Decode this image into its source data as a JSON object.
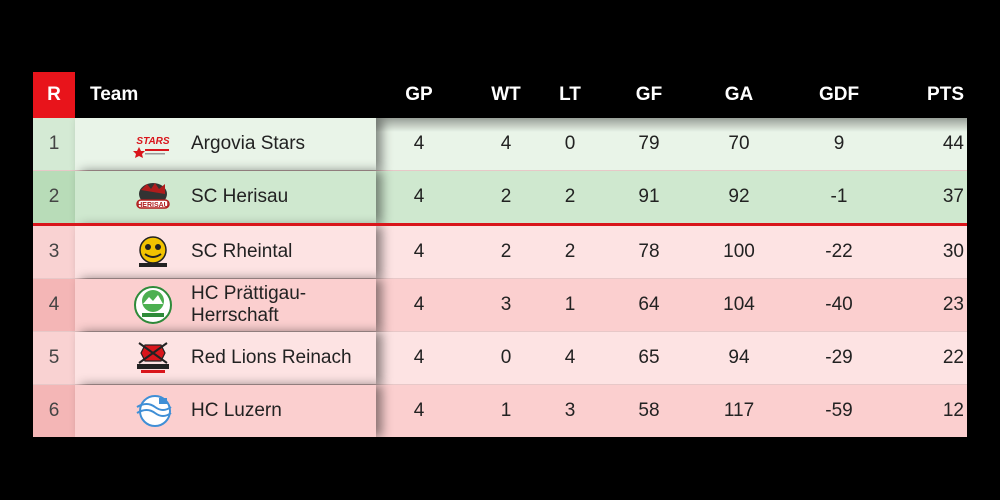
{
  "header": {
    "rank": "R",
    "team": "Team",
    "gp": "GP",
    "wt": "WT",
    "lt": "LT",
    "gf": "GF",
    "ga": "GA",
    "gdf": "GDF",
    "pts": "PTS"
  },
  "colors": {
    "accent": "#e8141b",
    "green_row": "#e9f4e8",
    "green_row_alt": "#cfe8cf",
    "red_row": "#fde3e3",
    "red_row_alt": "#fbcfcf"
  },
  "rows": [
    {
      "rank": "1",
      "team": "Argovia Stars",
      "gp": "4",
      "wt": "4",
      "lt": "0",
      "gf": "79",
      "ga": "70",
      "gdf": "9",
      "pts": "44",
      "logo": "argovia-stars-logo",
      "zone": "green",
      "alt": false
    },
    {
      "rank": "2",
      "team": "SC Herisau",
      "gp": "4",
      "wt": "2",
      "lt": "2",
      "gf": "91",
      "ga": "92",
      "gdf": "-1",
      "pts": "37",
      "logo": "sc-herisau-logo",
      "zone": "green",
      "alt": true
    },
    {
      "rank": "3",
      "team": "SC Rheintal",
      "gp": "4",
      "wt": "2",
      "lt": "2",
      "gf": "78",
      "ga": "100",
      "gdf": "-22",
      "pts": "30",
      "logo": "sc-rheintal-logo",
      "zone": "red",
      "alt": false
    },
    {
      "rank": "4",
      "team": "HC Prättigau-Herrschaft",
      "gp": "4",
      "wt": "3",
      "lt": "1",
      "gf": "64",
      "ga": "104",
      "gdf": "-40",
      "pts": "23",
      "logo": "hc-praettigau-logo",
      "zone": "red",
      "alt": true
    },
    {
      "rank": "5",
      "team": "Red Lions Reinach",
      "gp": "4",
      "wt": "0",
      "lt": "4",
      "gf": "65",
      "ga": "94",
      "gdf": "-29",
      "pts": "22",
      "logo": "red-lions-reinach-logo",
      "zone": "red",
      "alt": false
    },
    {
      "rank": "6",
      "team": "HC Luzern",
      "gp": "4",
      "wt": "1",
      "lt": "3",
      "gf": "58",
      "ga": "117",
      "gdf": "-59",
      "pts": "12",
      "logo": "hc-luzern-logo",
      "zone": "red",
      "alt": true
    }
  ]
}
